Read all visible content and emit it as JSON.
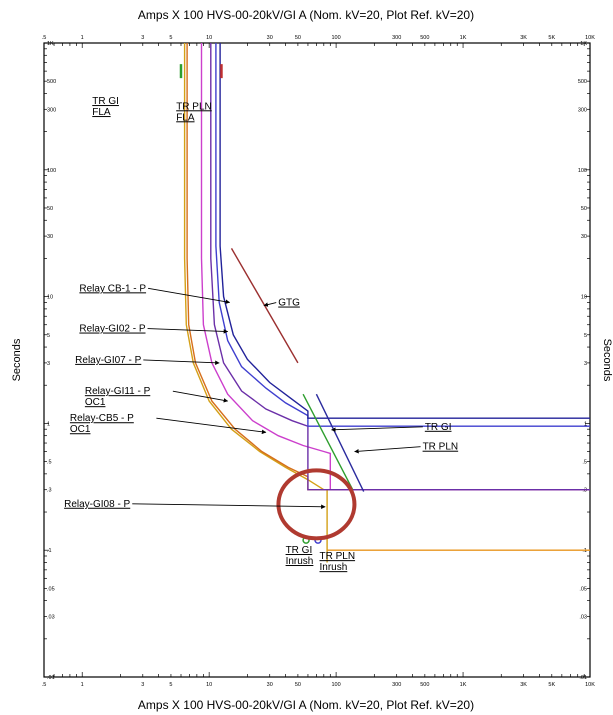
{
  "chart_data": {
    "type": "line",
    "title_top": "Amps  X  100   HVS-00-20kV/GI A (Nom. kV=20, Plot Ref. kV=20)",
    "title_bottom": "Amps  X  100   HVS-00-20kV/GI A (Nom. kV=20, Plot Ref. kV=20)",
    "ylabel": "Seconds",
    "ylabel_right": "Seconds",
    "x_scale": "log",
    "y_scale": "log",
    "xlim": [
      0.5,
      10000
    ],
    "ylim": [
      0.01,
      1000
    ],
    "x_ticks": [
      {
        "v": 0.5,
        "t": ".5"
      },
      {
        "v": 1,
        "t": "1"
      },
      {
        "v": 3,
        "t": "3"
      },
      {
        "v": 5,
        "t": "5"
      },
      {
        "v": 10,
        "t": "10"
      },
      {
        "v": 30,
        "t": "30"
      },
      {
        "v": 50,
        "t": "50"
      },
      {
        "v": 100,
        "t": "100"
      },
      {
        "v": 300,
        "t": "300"
      },
      {
        "v": 500,
        "t": "500"
      },
      {
        "v": 1000,
        "t": "1K"
      },
      {
        "v": 3000,
        "t": "3K"
      },
      {
        "v": 5000,
        "t": "5K"
      },
      {
        "v": 10000,
        "t": "10K"
      }
    ],
    "y_ticks": [
      {
        "v": 1000,
        "t": "1K"
      },
      {
        "v": 500,
        "t": "500"
      },
      {
        "v": 300,
        "t": "300"
      },
      {
        "v": 100,
        "t": "100"
      },
      {
        "v": 50,
        "t": "50"
      },
      {
        "v": 30,
        "t": "30"
      },
      {
        "v": 10,
        "t": "10"
      },
      {
        "v": 5,
        "t": "5"
      },
      {
        "v": 3,
        "t": "3"
      },
      {
        "v": 1,
        "t": "1"
      },
      {
        "v": 0.5,
        "t": ".5"
      },
      {
        "v": 0.3,
        "t": ".3"
      },
      {
        "v": 0.1,
        "t": ".1"
      },
      {
        "v": 0.05,
        "t": ".05"
      },
      {
        "v": 0.03,
        "t": ".03"
      },
      {
        "v": 0.01,
        "t": ".01"
      }
    ],
    "series": [
      {
        "id": "gi08",
        "color": "#d4a017",
        "points": [
          [
            6.4,
            1000
          ],
          [
            6.4,
            20
          ],
          [
            6.6,
            6
          ],
          [
            7.5,
            3
          ],
          [
            10,
            1.5
          ],
          [
            15,
            0.9
          ],
          [
            25,
            0.6
          ],
          [
            40,
            0.45
          ],
          [
            60,
            0.36
          ],
          [
            80,
            0.3
          ],
          [
            85,
            0.3
          ],
          [
            85,
            0.08
          ]
        ]
      },
      {
        "id": "cb5",
        "color": "#d66f1c",
        "points": [
          [
            6.7,
            1000
          ],
          [
            6.7,
            20
          ],
          [
            6.9,
            6
          ],
          [
            7.8,
            3
          ],
          [
            10.5,
            1.5
          ],
          [
            16,
            0.9
          ],
          [
            26,
            0.6
          ],
          [
            42,
            0.45
          ],
          [
            60,
            0.38
          ],
          [
            60,
            0.3
          ],
          [
            10000,
            0.3
          ]
        ]
      },
      {
        "id": "gi11",
        "color": "#cc3fcc",
        "points": [
          [
            8.7,
            1000
          ],
          [
            8.7,
            20
          ],
          [
            9,
            6
          ],
          [
            10.5,
            3
          ],
          [
            14,
            1.7
          ],
          [
            22,
            1.05
          ],
          [
            35,
            0.8
          ],
          [
            55,
            0.67
          ],
          [
            80,
            0.6
          ],
          [
            90,
            0.58
          ],
          [
            90,
            0.3
          ],
          [
            10000,
            0.3
          ]
        ]
      },
      {
        "id": "gi07",
        "color": "#6b2fa8",
        "points": [
          [
            10.3,
            1000
          ],
          [
            10.3,
            20
          ],
          [
            11,
            6
          ],
          [
            13,
            3
          ],
          [
            18,
            1.8
          ],
          [
            28,
            1.3
          ],
          [
            45,
            1.05
          ],
          [
            60,
            0.95
          ],
          [
            60,
            0.3
          ],
          [
            10000,
            0.3
          ]
        ]
      },
      {
        "id": "gi02",
        "color": "#3f3fcf",
        "points": [
          [
            11.3,
            1000
          ],
          [
            11.3,
            25
          ],
          [
            12,
            9
          ],
          [
            14,
            4.5
          ],
          [
            18,
            2.8
          ],
          [
            28,
            1.9
          ],
          [
            40,
            1.45
          ],
          [
            60,
            1.15
          ],
          [
            60,
            0.95
          ],
          [
            10000,
            0.95
          ]
        ]
      },
      {
        "id": "cb1",
        "color": "#22229a",
        "points": [
          [
            12.2,
            1000
          ],
          [
            12.2,
            25
          ],
          [
            13,
            10
          ],
          [
            15.5,
            5
          ],
          [
            20,
            3.2
          ],
          [
            30,
            2.1
          ],
          [
            45,
            1.55
          ],
          [
            60,
            1.25
          ],
          [
            60,
            1.1
          ],
          [
            10000,
            1.1
          ]
        ]
      },
      {
        "id": "gtg",
        "color": "#9b3030",
        "points": [
          [
            15,
            24
          ],
          [
            50,
            3
          ]
        ]
      },
      {
        "id": "trgi_dmg",
        "color": "#2e9e2e",
        "points": [
          [
            55,
            1.7
          ],
          [
            135,
            0.3
          ]
        ]
      },
      {
        "id": "trpln_dmg",
        "color": "#2b2b9e",
        "points": [
          [
            70,
            1.7
          ],
          [
            165,
            0.29
          ]
        ]
      },
      {
        "id": "trgi_inrush",
        "color": "#e8951e",
        "points": [
          [
            85,
            0.1
          ],
          [
            10000,
            0.1
          ]
        ]
      }
    ],
    "fla_markers": [
      {
        "id": "trgi_fla",
        "color": "#2e9e2e",
        "x": 6.0,
        "y": 600
      },
      {
        "id": "trpln_fla",
        "color": "#c03030",
        "x": 12.5,
        "y": 600
      }
    ],
    "inrush_points": [
      {
        "id": "trgi_inrush_pt",
        "color": "#2e9e2e",
        "x": 58,
        "y": 0.12
      },
      {
        "id": "trpln_inrush_pt",
        "color": "#3f3fcf",
        "x": 72,
        "y": 0.12
      }
    ],
    "highlight_circle": {
      "x": 70,
      "y": 0.23
    },
    "labels": [
      {
        "id": "lbl-tr-gi-fla",
        "lines": [
          "TR GI",
          "FLA"
        ],
        "x": 1.2,
        "y": 330
      },
      {
        "id": "lbl-tr-pln-fla",
        "lines": [
          "TR PLN",
          "FLA"
        ],
        "x": 5.5,
        "y": 300
      },
      {
        "id": "lbl-relay-cb1",
        "lines": [
          "Relay CB-1 - P"
        ],
        "x": 0.95,
        "y": 11,
        "ax": 14.5,
        "ay": 9
      },
      {
        "id": "lbl-relay-gi02",
        "lines": [
          "Relay-GI02 - P"
        ],
        "x": 0.95,
        "y": 5.3,
        "ax": 14,
        "ay": 5.3
      },
      {
        "id": "lbl-relay-gi07",
        "lines": [
          "Relay-GI07 - P"
        ],
        "x": 0.88,
        "y": 3,
        "ax": 12,
        "ay": 3
      },
      {
        "id": "lbl-relay-gi11",
        "lines": [
          "Relay-GI11 - P",
          "OC1"
        ],
        "x": 1.05,
        "y": 1.7,
        "ax": 14,
        "ay": 1.5
      },
      {
        "id": "lbl-relay-cb5",
        "lines": [
          "Relay-CB5 - P",
          "OC1"
        ],
        "x": 0.8,
        "y": 1.04,
        "ax": 28,
        "ay": 0.85
      },
      {
        "id": "lbl-gtg",
        "lines": [
          "GTG"
        ],
        "x": 35,
        "y": 8.5,
        "ax": 27,
        "ay": 8.5
      },
      {
        "id": "lbl-tr-gi",
        "lines": [
          "TR GI"
        ],
        "x": 500,
        "y": 0.89,
        "ax": 92,
        "ay": 0.89
      },
      {
        "id": "lbl-tr-pln",
        "lines": [
          "TR PLN"
        ],
        "x": 480,
        "y": 0.62,
        "ax": 140,
        "ay": 0.6
      },
      {
        "id": "lbl-relay-gi08",
        "lines": [
          "Relay-GI08 - P"
        ],
        "x": 0.72,
        "y": 0.22,
        "ax": 82,
        "ay": 0.22
      },
      {
        "id": "lbl-tr-gi-inrush",
        "lines": [
          "TR GI",
          "Inrush"
        ],
        "x": 40,
        "y": 0.095
      },
      {
        "id": "lbl-tr-pln-inrush",
        "lines": [
          "TR PLN",
          "Inrush"
        ],
        "x": 74,
        "y": 0.085
      }
    ]
  }
}
